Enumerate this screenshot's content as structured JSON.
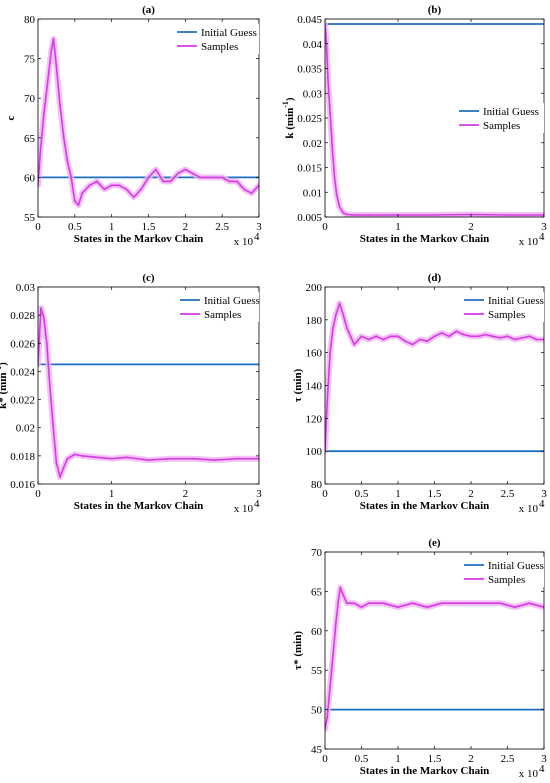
{
  "colors": {
    "initial_guess": "#1f6fbf",
    "samples": "#d63ae6",
    "samples_band": "#f0b3f5"
  },
  "chart_data": [
    {
      "type": "line",
      "title": "(a)",
      "ylabel": "c",
      "xlabel": "States in the Markov Chain",
      "x_multiplier": "x 10",
      "x_multiplier_exp": "4",
      "xlim": [
        0,
        30000
      ],
      "ylim": [
        55,
        80
      ],
      "xticks": [
        0,
        5000,
        10000,
        15000,
        20000,
        25000,
        30000
      ],
      "xtick_labels": [
        "0",
        "0.5",
        "1",
        "1.5",
        "2",
        "2.5",
        "3"
      ],
      "yticks": [
        55,
        60,
        65,
        70,
        75,
        80
      ],
      "ytick_labels": [
        "55",
        "60",
        "65",
        "70",
        "75",
        "80"
      ],
      "legend_position": "top-right",
      "series": [
        {
          "name": "Initial Guess",
          "x": [
            0,
            30000
          ],
          "y": [
            60,
            60
          ]
        },
        {
          "name": "Samples",
          "x": [
            0,
            300,
            800,
            1300,
            1800,
            2100,
            2500,
            3000,
            3500,
            4000,
            4500,
            5000,
            5500,
            6000,
            7000,
            8000,
            9000,
            10000,
            11000,
            12000,
            13000,
            14000,
            15000,
            16000,
            17000,
            18000,
            19000,
            20000,
            21000,
            22000,
            23000,
            24000,
            25000,
            26000,
            27000,
            28000,
            29000,
            30000
          ],
          "y": [
            59,
            63,
            68,
            72,
            76,
            77.5,
            74,
            69,
            65,
            62,
            60,
            57,
            56.5,
            58,
            59,
            59.5,
            58.5,
            59,
            59,
            58.5,
            57.5,
            58.5,
            60,
            61,
            59.5,
            59.5,
            60.5,
            61,
            60.5,
            60,
            60,
            60,
            60,
            59.5,
            59.5,
            58.5,
            58,
            59
          ]
        }
      ]
    },
    {
      "type": "line",
      "title": "(b)",
      "ylabel": "k (min",
      "ylabel_sup": "-1",
      "ylabel_end": ")",
      "xlabel": "States in the Markov Chain",
      "x_multiplier": "x 10",
      "x_multiplier_exp": "4",
      "xlim": [
        0,
        30000
      ],
      "ylim": [
        0.005,
        0.045
      ],
      "xticks": [
        0,
        10000,
        20000,
        30000
      ],
      "xtick_labels": [
        "0",
        "1",
        "2",
        "3"
      ],
      "yticks": [
        0.005,
        0.01,
        0.015,
        0.02,
        0.025,
        0.03,
        0.035,
        0.04,
        0.045
      ],
      "ytick_labels": [
        "0.005",
        "0.01",
        "0.015",
        "0.02",
        "0.025",
        "0.03",
        "0.035",
        "0.04",
        "0.045"
      ],
      "legend_position": "center-right",
      "series": [
        {
          "name": "Initial Guess",
          "x": [
            0,
            30000
          ],
          "y": [
            0.044,
            0.044
          ]
        },
        {
          "name": "Samples",
          "x": [
            0,
            200,
            400,
            700,
            1000,
            1300,
            1600,
            2000,
            2500,
            3000,
            4000,
            6000,
            10000,
            15000,
            20000,
            25000,
            30000
          ],
          "y": [
            0.044,
            0.04,
            0.033,
            0.026,
            0.019,
            0.013,
            0.0095,
            0.007,
            0.0058,
            0.0055,
            0.0054,
            0.0054,
            0.0054,
            0.0054,
            0.0055,
            0.0054,
            0.0054
          ]
        }
      ]
    },
    {
      "type": "line",
      "title": "(c)",
      "ylabel": "k* (min",
      "ylabel_sup": "-1",
      "ylabel_end": ")",
      "xlabel": "States in the Markov Chain",
      "x_multiplier": "x 10",
      "x_multiplier_exp": "4",
      "xlim": [
        0,
        30000
      ],
      "ylim": [
        0.016,
        0.03
      ],
      "xticks": [
        0,
        10000,
        20000,
        30000
      ],
      "xtick_labels": [
        "0",
        "1",
        "2",
        "3"
      ],
      "yticks": [
        0.016,
        0.018,
        0.02,
        0.022,
        0.024,
        0.026,
        0.028,
        0.03
      ],
      "ytick_labels": [
        "0.016",
        "0.018",
        "0.02",
        "0.022",
        "0.024",
        "0.026",
        "0.028",
        "0.03"
      ],
      "legend_position": "top-right",
      "series": [
        {
          "name": "Initial Guess",
          "x": [
            0,
            30000
          ],
          "y": [
            0.0245,
            0.0245
          ]
        },
        {
          "name": "Samples",
          "x": [
            0,
            400,
            800,
            1200,
            1600,
            2000,
            2500,
            3000,
            3500,
            4000,
            5000,
            6000,
            8000,
            10000,
            12000,
            15000,
            18000,
            21000,
            24000,
            27000,
            30000
          ],
          "y": [
            0.0245,
            0.0285,
            0.0278,
            0.026,
            0.023,
            0.0205,
            0.0175,
            0.0165,
            0.0172,
            0.0178,
            0.0181,
            0.018,
            0.0179,
            0.0178,
            0.0179,
            0.0177,
            0.0178,
            0.0178,
            0.0177,
            0.0178,
            0.0178
          ]
        }
      ]
    },
    {
      "type": "line",
      "title": "(d)",
      "ylabel": "τ (min)",
      "xlabel": "States in the Markov Chain",
      "x_multiplier": "x 10",
      "x_multiplier_exp": "4",
      "xlim": [
        0,
        30000
      ],
      "ylim": [
        80,
        200
      ],
      "xticks": [
        0,
        5000,
        10000,
        15000,
        20000,
        25000,
        30000
      ],
      "xtick_labels": [
        "0",
        "0.5",
        "1",
        "1.5",
        "2",
        "2.5",
        "3"
      ],
      "yticks": [
        80,
        100,
        120,
        140,
        160,
        180,
        200
      ],
      "ytick_labels": [
        "80",
        "100",
        "120",
        "140",
        "160",
        "180",
        "200"
      ],
      "legend_position": "top-right",
      "series": [
        {
          "name": "Initial Guess",
          "x": [
            0,
            30000
          ],
          "y": [
            100,
            100
          ]
        },
        {
          "name": "Samples",
          "x": [
            0,
            300,
            700,
            1100,
            1500,
            2000,
            2500,
            3000,
            3500,
            4000,
            5000,
            6000,
            7000,
            8000,
            9000,
            10000,
            11000,
            12000,
            13000,
            14000,
            15000,
            16000,
            17000,
            18000,
            19000,
            20000,
            21000,
            22000,
            23000,
            24000,
            25000,
            26000,
            27000,
            28000,
            29000,
            30000
          ],
          "y": [
            100,
            130,
            160,
            175,
            183,
            190,
            183,
            175,
            170,
            165,
            170,
            168,
            170,
            168,
            170,
            170,
            167,
            165,
            168,
            167,
            170,
            172,
            170,
            173,
            171,
            170,
            170,
            171,
            170,
            169,
            170,
            168,
            169,
            170,
            168,
            168
          ]
        }
      ]
    },
    {
      "type": "line",
      "title": "(e)",
      "ylabel": "τ* (min)",
      "xlabel": "States in the Markov Chain",
      "x_multiplier": "x 10",
      "x_multiplier_exp": "4",
      "xlim": [
        0,
        30000
      ],
      "ylim": [
        45,
        70
      ],
      "xticks": [
        0,
        5000,
        10000,
        15000,
        20000,
        25000,
        30000
      ],
      "xtick_labels": [
        "0",
        "0.5",
        "1",
        "1.5",
        "2",
        "2.5",
        "3"
      ],
      "yticks": [
        45,
        50,
        55,
        60,
        65,
        70
      ],
      "ytick_labels": [
        "45",
        "50",
        "55",
        "60",
        "65",
        "70"
      ],
      "legend_position": "top-right",
      "series": [
        {
          "name": "Initial Guess",
          "x": [
            0,
            30000
          ],
          "y": [
            50,
            50
          ]
        },
        {
          "name": "Samples",
          "x": [
            0,
            300,
            600,
            900,
            1200,
            1500,
            1800,
            2100,
            2500,
            3000,
            4000,
            5000,
            6000,
            8000,
            10000,
            12000,
            14000,
            16000,
            18000,
            20000,
            22000,
            24000,
            26000,
            28000,
            30000
          ],
          "y": [
            47.5,
            49,
            52,
            55,
            58,
            61,
            63.5,
            65.5,
            64.5,
            63.5,
            63.5,
            63,
            63.5,
            63.5,
            63,
            63.5,
            63,
            63.5,
            63.5,
            63.5,
            63.5,
            63.5,
            63,
            63.5,
            63
          ]
        }
      ]
    }
  ]
}
